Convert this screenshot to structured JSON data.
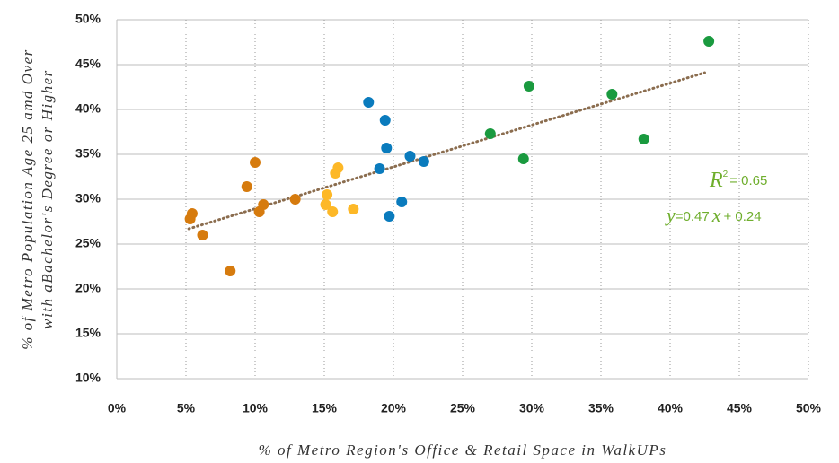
{
  "chart_data": {
    "type": "scatter",
    "xlabel": "% of Metro Region's Office & Retail Space in WalkUPs",
    "ylabel": [
      "% of Metro Population  Age 25 amd Over",
      "with aBachelor's Degree or Higher"
    ],
    "xlim": [
      0,
      50
    ],
    "ylim": [
      10,
      50
    ],
    "xticks": [
      {
        "value": 0,
        "label": "0%"
      },
      {
        "value": 5,
        "label": "5%"
      },
      {
        "value": 10,
        "label": "10%"
      },
      {
        "value": 15,
        "label": "15%"
      },
      {
        "value": 20,
        "label": "20%"
      },
      {
        "value": 25,
        "label": "25%"
      },
      {
        "value": 30,
        "label": "30%"
      },
      {
        "value": 35,
        "label": "35%"
      },
      {
        "value": 40,
        "label": "40%"
      },
      {
        "value": 45,
        "label": "45%"
      },
      {
        "value": 50,
        "label": "50%"
      }
    ],
    "yticks": [
      {
        "value": 10,
        "label": "10%"
      },
      {
        "value": 15,
        "label": "15%"
      },
      {
        "value": 20,
        "label": "20%"
      },
      {
        "value": 25,
        "label": "25%"
      },
      {
        "value": 30,
        "label": "30%"
      },
      {
        "value": 35,
        "label": "35%"
      },
      {
        "value": 40,
        "label": "40%"
      },
      {
        "value": 45,
        "label": "45%"
      },
      {
        "value": 50,
        "label": "50%"
      }
    ],
    "grid": true,
    "series": [
      {
        "color": "#d67b0e",
        "x": [
          5.3,
          5.45,
          6.2,
          8.2,
          9.4,
          10.0,
          10.3,
          10.6,
          12.9
        ],
        "y": [
          27.8,
          28.4,
          26.0,
          22.0,
          31.4,
          34.1,
          28.6,
          29.4,
          30.0
        ]
      },
      {
        "color": "#fdb827",
        "x": [
          15.1,
          15.2,
          15.6,
          15.8,
          16.0,
          17.1
        ],
        "y": [
          29.4,
          30.5,
          28.6,
          32.9,
          33.5,
          28.9
        ]
      },
      {
        "color": "#0a7bbd",
        "x": [
          18.2,
          19.4,
          19.5,
          19.0,
          19.7,
          20.6,
          21.2,
          22.2
        ],
        "y": [
          40.8,
          38.8,
          35.7,
          33.4,
          28.1,
          29.7,
          34.8,
          34.2
        ]
      },
      {
        "color": "#1a9a3f",
        "x": [
          27.0,
          29.4,
          29.8,
          35.8,
          38.1,
          42.8
        ],
        "y": [
          37.3,
          34.5,
          42.6,
          41.7,
          36.7,
          47.6
        ]
      }
    ],
    "trendline": {
      "color": "#8b6d4f",
      "x": [
        5.2,
        42.5
      ],
      "y": [
        26.7,
        44.1
      ]
    },
    "annotations": {
      "color": "#6fae2d",
      "r_squared": [
        "R",
        "2",
        "= 0.65"
      ],
      "equation": [
        "y",
        "=0.47",
        "x",
        "+ 0.24"
      ]
    }
  }
}
